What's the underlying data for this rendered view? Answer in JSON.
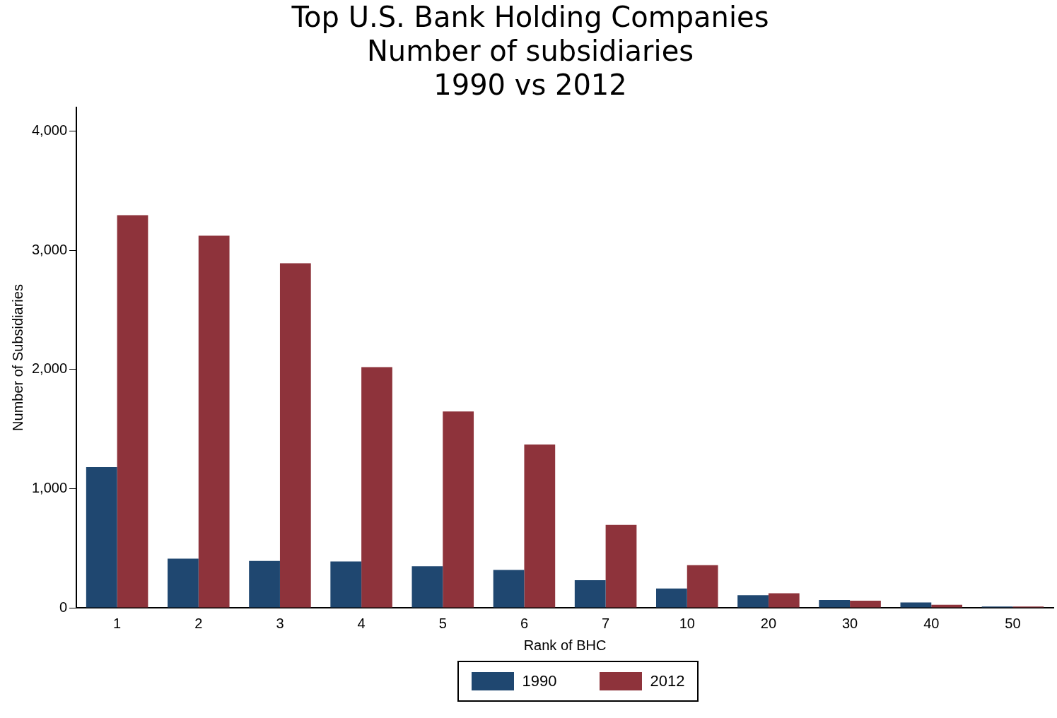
{
  "chart_data": {
    "type": "bar",
    "title": [
      "Top U.S. Bank Holding Companies",
      "Number of subsidiaries",
      "1990 vs 2012"
    ],
    "xlabel": "Rank of BHC",
    "ylabel": "Number of Subsidiaries",
    "categories": [
      "1",
      "2",
      "3",
      "4",
      "5",
      "6",
      "7",
      "10",
      "20",
      "30",
      "40",
      "50"
    ],
    "series": [
      {
        "name": "1990",
        "color": "#1f4770",
        "values": [
          1180,
          413,
          393,
          388,
          348,
          317,
          232,
          161,
          106,
          65,
          45,
          10
        ]
      },
      {
        "name": "2012",
        "color": "#8e333b",
        "values": [
          3295,
          3123,
          2892,
          2020,
          1647,
          1370,
          695,
          358,
          121,
          60,
          25,
          10
        ]
      }
    ],
    "ylim": [
      0,
      4200
    ],
    "yticks": [
      {
        "value": 0,
        "label": "0"
      },
      {
        "value": 1000,
        "label": "1,000"
      },
      {
        "value": 2000,
        "label": "2,000"
      },
      {
        "value": 3000,
        "label": "3,000"
      },
      {
        "value": 4000,
        "label": "4,000"
      }
    ],
    "grid": false,
    "legend": "bottom"
  }
}
